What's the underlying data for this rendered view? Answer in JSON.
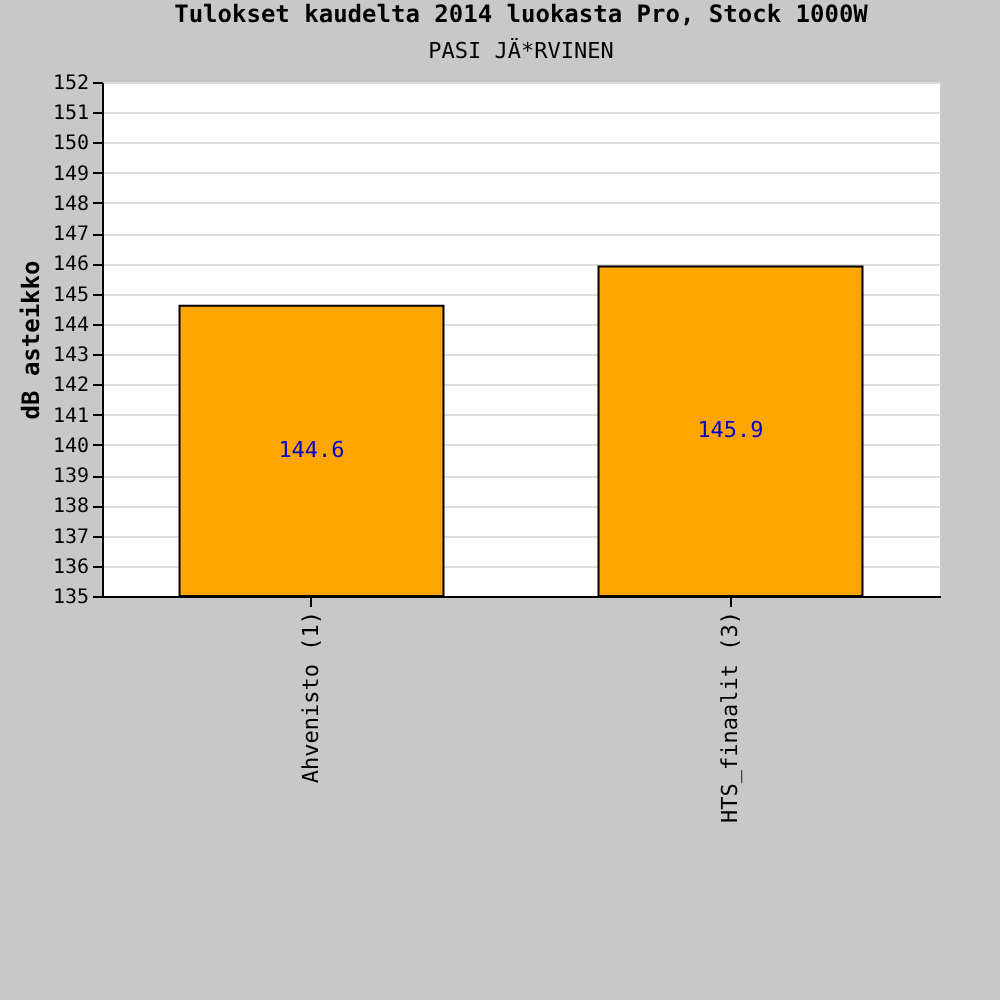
{
  "chart_data": {
    "type": "bar",
    "title": "Tulokset kaudelta 2014 luokasta Pro, Stock 1000W",
    "subtitle": "PASI JÄ*RVINEN",
    "ylabel": "dB asteikko",
    "categories": [
      "Ahvenisto (1)",
      "HTS_finaalit (3)"
    ],
    "values": [
      144.6,
      145.9
    ],
    "color": "#ffa500",
    "ylim": [
      135,
      152
    ],
    "yticks": [
      135,
      136,
      137,
      138,
      139,
      140,
      141,
      142,
      143,
      144,
      145,
      146,
      147,
      148,
      149,
      150,
      151,
      152
    ],
    "grid": "y",
    "data_labels": true
  }
}
